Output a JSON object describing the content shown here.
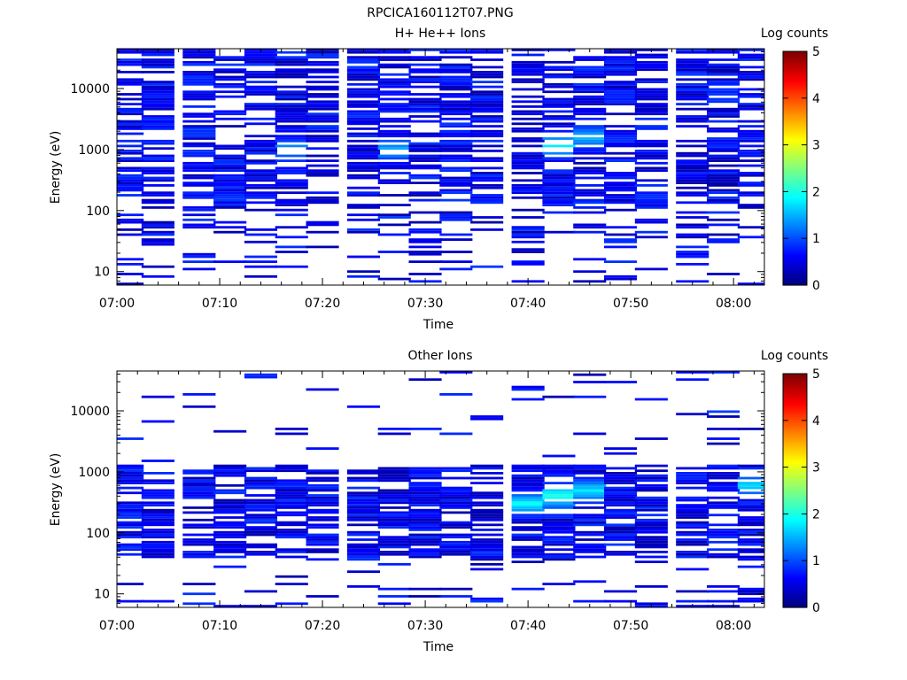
{
  "figure": {
    "title": "RPCICA160112T07.PNG"
  },
  "colorbar": {
    "label": "Log counts",
    "ticks": [
      "0",
      "1",
      "2",
      "3",
      "4",
      "5"
    ],
    "range": [
      0,
      5
    ]
  },
  "chart_data": [
    {
      "type": "heatmap",
      "title": "H+ He++ Ions",
      "xlabel": "Time",
      "ylabel": "Energy (eV)",
      "yscale": "log",
      "ylim": [
        6,
        45000
      ],
      "xlim_minutes": [
        0,
        63
      ],
      "xticks": [
        "07:00",
        "07:10",
        "07:20",
        "07:30",
        "07:40",
        "07:50",
        "08:00"
      ],
      "yticks": [
        "10",
        "100",
        "1000",
        "10000"
      ],
      "time_bins": [
        "07:01",
        "07:04",
        "07:08",
        "07:11",
        "07:14",
        "07:17",
        "07:20",
        "07:24",
        "07:27",
        "07:30",
        "07:33",
        "07:36",
        "07:40",
        "07:43",
        "07:46",
        "07:49",
        "07:52",
        "07:56",
        "07:59",
        "08:02"
      ],
      "energy_range_eV": [
        6,
        45000
      ],
      "energy_channels": 96,
      "colorbar_label": "Log counts",
      "colorbar_range": [
        0,
        5
      ],
      "intensity_peaks": [
        {
          "time": "07:27",
          "energy_eV": 1000,
          "log_counts": 1.5
        },
        {
          "time": "07:43",
          "energy_eV": 1200,
          "log_counts": 1.8
        },
        {
          "time": "07:46",
          "energy_eV": 1600,
          "log_counts": 1.6
        },
        {
          "time": "07:17",
          "energy_eV": 1000,
          "log_counts": 1.3
        }
      ]
    },
    {
      "type": "heatmap",
      "title": "Other Ions",
      "xlabel": "Time",
      "ylabel": "Energy (eV)",
      "yscale": "log",
      "ylim": [
        6,
        45000
      ],
      "xlim_minutes": [
        0,
        63
      ],
      "xticks": [
        "07:00",
        "07:10",
        "07:20",
        "07:30",
        "07:40",
        "07:50",
        "08:00"
      ],
      "yticks": [
        "10",
        "100",
        "1000",
        "10000"
      ],
      "time_bins": [
        "07:01",
        "07:04",
        "07:08",
        "07:11",
        "07:14",
        "07:17",
        "07:20",
        "07:24",
        "07:27",
        "07:30",
        "07:33",
        "07:36",
        "07:40",
        "07:43",
        "07:46",
        "07:49",
        "07:52",
        "07:56",
        "07:59",
        "08:02"
      ],
      "energy_range_eV": [
        6,
        45000
      ],
      "energy_channels": 96,
      "colorbar_label": "Log counts",
      "colorbar_range": [
        0,
        5
      ],
      "intensity_peaks": [
        {
          "time": "07:40",
          "energy_eV": 300,
          "log_counts": 1.8
        },
        {
          "time": "07:43",
          "energy_eV": 400,
          "log_counts": 2.0
        },
        {
          "time": "07:46",
          "energy_eV": 500,
          "log_counts": 1.7
        },
        {
          "time": "08:02",
          "energy_eV": 600,
          "log_counts": 1.6
        }
      ]
    }
  ]
}
